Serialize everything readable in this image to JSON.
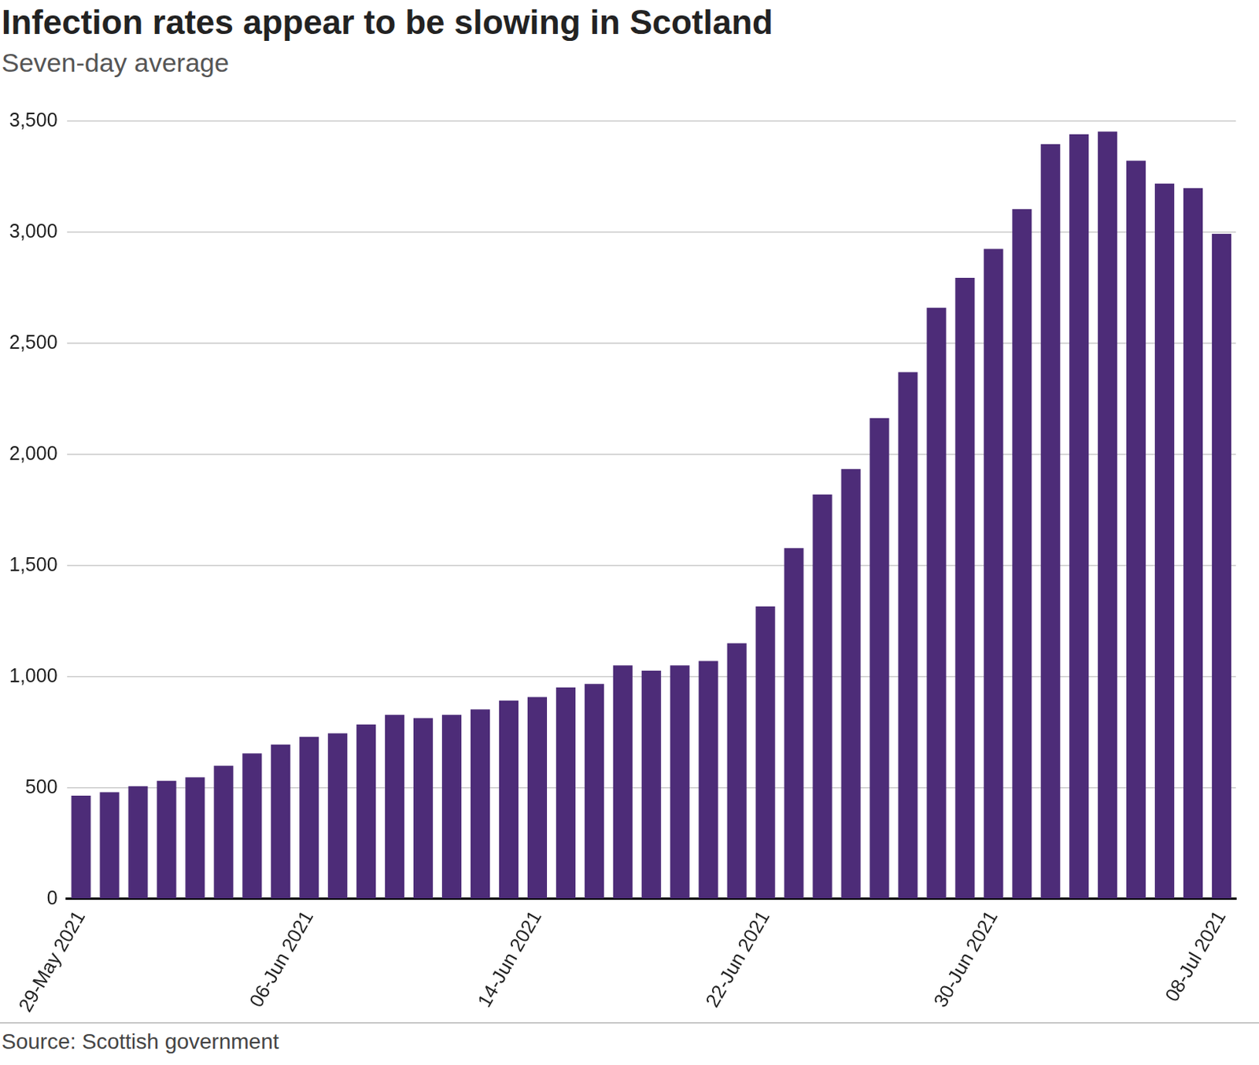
{
  "chart_data": {
    "type": "bar",
    "title": "Infection rates appear to be slowing in Scotland",
    "subtitle": "Seven-day average",
    "source": "Source: Scottish government",
    "categories": [
      "29-May 2021",
      null,
      null,
      null,
      null,
      null,
      null,
      null,
      "06-Jun 2021",
      null,
      null,
      null,
      null,
      null,
      null,
      null,
      "14-Jun 2021",
      null,
      null,
      null,
      null,
      null,
      null,
      null,
      "22-Jun 2021",
      null,
      null,
      null,
      null,
      null,
      null,
      null,
      "30-Jun 2021",
      null,
      null,
      null,
      null,
      null,
      null,
      null,
      "08-Jul 2021"
    ],
    "values": [
      464,
      480,
      507,
      531,
      547,
      599,
      654,
      694,
      729,
      745,
      785,
      828,
      813,
      828,
      852,
      892,
      908,
      951,
      967,
      1050,
      1027,
      1050,
      1070,
      1150,
      1316,
      1578,
      1820,
      1934,
      2164,
      2370,
      2660,
      2795,
      2925,
      3104,
      3397,
      3441,
      3453,
      3322,
      3219,
      3199,
      2993
    ],
    "color": "#4d2c78",
    "ylim": [
      0,
      3500
    ],
    "yticks": [
      0,
      500,
      {
        "value": 1000,
        "label": "1,000"
      },
      {
        "value": 1500,
        "label": "1,500"
      },
      {
        "value": 2000,
        "label": "2,000"
      },
      {
        "value": 2500,
        "label": "2,500"
      },
      {
        "value": 3000,
        "label": "3,000"
      },
      {
        "value": 3500,
        "label": "3,500"
      }
    ],
    "grid": true
  }
}
